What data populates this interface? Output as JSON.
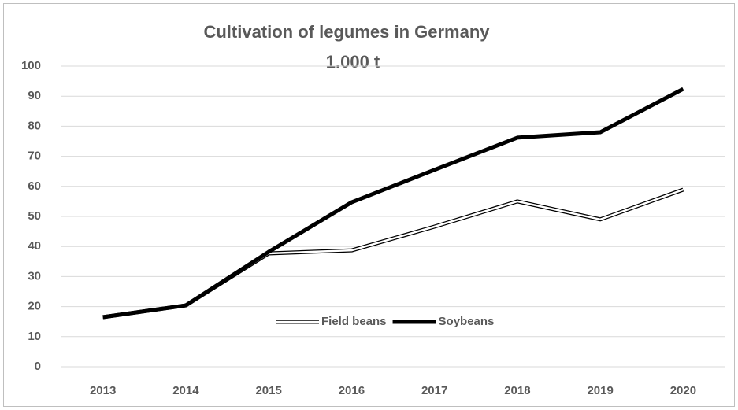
{
  "chart_data": {
    "type": "line",
    "title": "Cultivation of legumes in Germany",
    "subtitle": "1.000 t",
    "categories": [
      "2013",
      "2014",
      "2015",
      "2016",
      "2017",
      "2018",
      "2019",
      "2020"
    ],
    "series": [
      {
        "name": "Field beans",
        "color": "#ffffff",
        "values": [
          16.5,
          20.4,
          37.7,
          38.7,
          46.6,
          55,
          49,
          58.9
        ]
      },
      {
        "name": "Soybeans",
        "color": "#000000",
        "values": [
          16.5,
          20.4,
          38.2,
          54.7,
          65.5,
          76.2,
          78,
          92.4
        ]
      }
    ],
    "ylim": [
      0,
      100
    ],
    "yticks": [
      0,
      10,
      20,
      30,
      40,
      50,
      60,
      70,
      80,
      90,
      100
    ],
    "grid": true,
    "legend": "bottom"
  }
}
